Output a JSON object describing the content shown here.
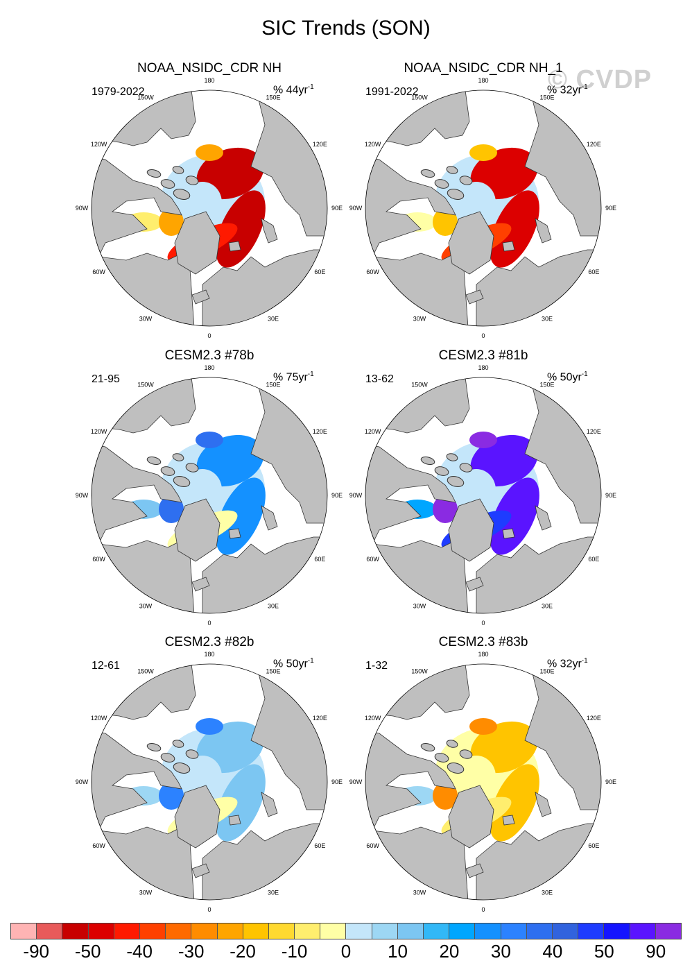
{
  "title": "SIC Trends (SON)",
  "watermark": "© CVDP",
  "panels": [
    {
      "title": "NOAA_NSIDC_CDR NH",
      "range": "1979-2022",
      "scale": "% 44yr",
      "scale_sup": "-1",
      "pattern": "observed_loss"
    },
    {
      "title": "NOAA_NSIDC_CDR NH_1",
      "range": "1991-2022",
      "scale": "% 32yr",
      "scale_sup": "-1",
      "pattern": "observed_loss2"
    },
    {
      "title": "CESM2.3 #78b",
      "range": "21-95",
      "scale": "% 75yr",
      "scale_sup": "-1",
      "pattern": "blue_mixed"
    },
    {
      "title": "CESM2.3 #81b",
      "range": "13-62",
      "scale": "% 50yr",
      "scale_sup": "-1",
      "pattern": "strong_gain"
    },
    {
      "title": "CESM2.3 #82b",
      "range": "12-61",
      "scale": "% 50yr",
      "scale_sup": "-1",
      "pattern": "weak_mixed"
    },
    {
      "title": "CESM2.3 #83b",
      "range": "1-32",
      "scale": "% 32yr",
      "scale_sup": "-1",
      "pattern": "mild_loss"
    }
  ],
  "longitude_labels": [
    "180",
    "150E",
    "120E",
    "90E",
    "60E",
    "30E",
    "0",
    "30W",
    "60W",
    "90W",
    "120W",
    "150W"
  ],
  "colorbar": {
    "colors": [
      "#ffb4b4",
      "#e85a5a",
      "#c80000",
      "#dc0000",
      "#ff1a00",
      "#ff4000",
      "#ff6a00",
      "#ff8c00",
      "#ffa500",
      "#ffc400",
      "#ffd930",
      "#ffee6e",
      "#ffffa6",
      "#c4e6fa",
      "#9dd7f4",
      "#7cc6f2",
      "#32b8f7",
      "#00a6ff",
      "#1491ff",
      "#2c82ff",
      "#2e6ff0",
      "#3163de",
      "#1e3cff",
      "#1414ff",
      "#5a14ff",
      "#8a2be2"
    ],
    "labels": [
      "-90",
      "-50",
      "-40",
      "-30",
      "-20",
      "-10",
      "0",
      "10",
      "20",
      "30",
      "40",
      "50",
      "90"
    ]
  },
  "map_colors": {
    "land": "#bfbfbf",
    "ocean": "#ffffff",
    "coast": "#333333"
  }
}
